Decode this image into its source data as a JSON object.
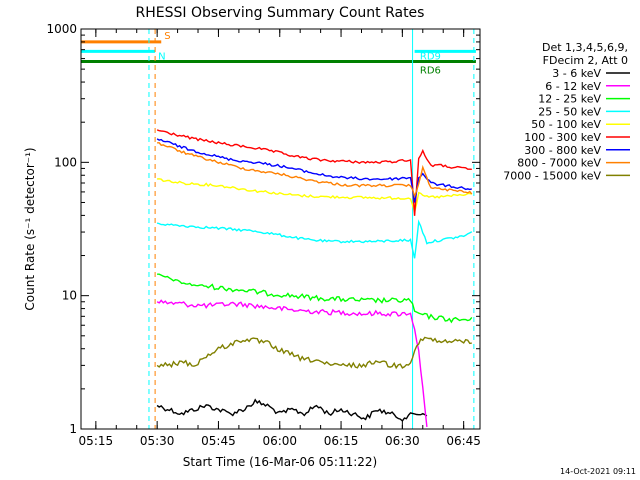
{
  "chart_data": {
    "type": "line",
    "title": "RHESSI Observing Summary Count Rates",
    "xlabel": "Start Time (16-Mar-06 05:11:22)",
    "ylabel": "Count Rate (s⁻¹ detector⁻¹)",
    "y_scale": "log",
    "ylim": [
      1,
      1000
    ],
    "xlim": [
      "05:11:22",
      "06:49:00"
    ],
    "y_ticks": [
      "1",
      "10",
      "100",
      "1000"
    ],
    "x_ticks": [
      "05:15",
      "05:30",
      "05:45",
      "06:00",
      "06:15",
      "06:30",
      "06:45"
    ],
    "legend_header": [
      "Det 1,3,4,5,6,9,",
      "FDecim 2, Att 0"
    ],
    "legend_position": "right",
    "timestamp": "14-Oct-2021 09:11",
    "flags": [
      {
        "label": "S",
        "color": "#ff8000",
        "start": "05:11:22",
        "end": "05:31:00",
        "y": 800
      },
      {
        "label": "N",
        "color": "#00ffff",
        "start": "05:11:22",
        "end": "05:29:30",
        "y": 680
      },
      {
        "label": "RD6",
        "color": "#008000",
        "start": "05:11:22",
        "end": "06:48:00",
        "y": 570
      },
      {
        "label": "RD9",
        "color": "#00ffff",
        "start": "06:33:00",
        "end": "06:48:00",
        "y": 680
      }
    ],
    "markers": [
      {
        "time": "05:28:00",
        "color": "#00ffff",
        "style": "dashed"
      },
      {
        "time": "05:29:30",
        "color": "#ff8000",
        "style": "dashed"
      },
      {
        "time": "06:32:30",
        "color": "#00ffff",
        "style": "solid"
      },
      {
        "time": "06:47:30",
        "color": "#00ffff",
        "style": "dashed"
      }
    ],
    "series": [
      {
        "name": "3 - 6 keV",
        "color": "#000000",
        "x": [
          "05:30",
          "05:33",
          "05:36",
          "05:39",
          "05:42",
          "05:45",
          "05:48",
          "05:51",
          "05:54",
          "05:57",
          "06:00",
          "06:03",
          "06:06",
          "06:09",
          "06:12",
          "06:15",
          "06:18",
          "06:21",
          "06:24",
          "06:27",
          "06:30",
          "06:33",
          "06:36"
        ],
        "values": [
          1.5,
          1.4,
          1.3,
          1.4,
          1.5,
          1.4,
          1.3,
          1.4,
          1.6,
          1.5,
          1.3,
          1.4,
          1.3,
          1.5,
          1.3,
          1.4,
          1.3,
          1.2,
          1.4,
          1.3,
          1.2,
          1.3,
          1.3
        ]
      },
      {
        "name": "6 - 12 keV",
        "color": "#ff00ff",
        "x": [
          "05:30",
          "05:33",
          "05:36",
          "05:39",
          "05:42",
          "05:45",
          "05:48",
          "05:51",
          "05:54",
          "05:57",
          "06:00",
          "06:03",
          "06:06",
          "06:09",
          "06:12",
          "06:15",
          "06:18",
          "06:21",
          "06:24",
          "06:27",
          "06:30",
          "06:32",
          "06:34",
          "06:36"
        ],
        "values": [
          9.0,
          8.8,
          8.7,
          8.5,
          8.4,
          8.5,
          8.7,
          8.6,
          8.4,
          8.2,
          8.0,
          7.8,
          7.7,
          7.6,
          7.5,
          7.5,
          7.4,
          7.3,
          7.4,
          7.3,
          7.3,
          7.5,
          4.0,
          1.0
        ]
      },
      {
        "name": "12 - 25 keV",
        "color": "#00ff00",
        "x": [
          "05:30",
          "05:33",
          "05:36",
          "05:39",
          "05:42",
          "05:45",
          "05:48",
          "05:51",
          "05:54",
          "05:57",
          "06:00",
          "06:03",
          "06:06",
          "06:09",
          "06:12",
          "06:15",
          "06:18",
          "06:21",
          "06:24",
          "06:27",
          "06:30",
          "06:32",
          "06:33",
          "06:36",
          "06:39",
          "06:42",
          "06:45",
          "06:47"
        ],
        "values": [
          14.5,
          13.5,
          12.5,
          12.0,
          11.8,
          11.5,
          11.2,
          11.0,
          10.7,
          10.4,
          10.2,
          10.0,
          9.8,
          9.6,
          9.5,
          9.4,
          9.3,
          9.2,
          9.2,
          9.2,
          9.2,
          9.3,
          7.5,
          7.0,
          6.8,
          6.6,
          6.6,
          6.6
        ]
      },
      {
        "name": "25 - 50 keV",
        "color": "#00ffff",
        "x": [
          "05:30",
          "05:33",
          "05:36",
          "05:39",
          "05:42",
          "05:45",
          "05:48",
          "05:51",
          "05:54",
          "05:57",
          "06:00",
          "06:03",
          "06:06",
          "06:09",
          "06:12",
          "06:15",
          "06:18",
          "06:21",
          "06:24",
          "06:27",
          "06:30",
          "06:32",
          "06:33",
          "06:34",
          "06:36",
          "06:39",
          "06:42",
          "06:45",
          "06:47"
        ],
        "values": [
          35.0,
          34.0,
          33.5,
          33.0,
          32.5,
          32.0,
          31.5,
          31.0,
          30.5,
          29.5,
          28.5,
          27.5,
          26.5,
          26.0,
          25.5,
          25.5,
          25.5,
          25.5,
          25.5,
          25.8,
          26.0,
          26.0,
          19.0,
          36.0,
          25.0,
          26.0,
          27.0,
          28.0,
          30.0
        ]
      },
      {
        "name": "50 - 100 keV",
        "color": "#ffff00",
        "x": [
          "05:30",
          "05:33",
          "05:36",
          "05:39",
          "05:42",
          "05:45",
          "05:48",
          "05:51",
          "05:54",
          "05:57",
          "06:00",
          "06:03",
          "06:06",
          "06:09",
          "06:12",
          "06:15",
          "06:18",
          "06:21",
          "06:24",
          "06:27",
          "06:30",
          "06:32",
          "06:33",
          "06:34",
          "06:36",
          "06:39",
          "06:42",
          "06:45",
          "06:47"
        ],
        "values": [
          75.0,
          72.0,
          70.0,
          69.0,
          68.0,
          67.0,
          65.0,
          63.0,
          61.0,
          60.0,
          58.0,
          57.0,
          56.0,
          55.5,
          55.0,
          55.0,
          54.5,
          54.5,
          54.0,
          54.0,
          54.0,
          54.0,
          43.0,
          58.0,
          55.0,
          55.0,
          56.0,
          57.0,
          58.0
        ]
      },
      {
        "name": "100 - 300 keV",
        "color": "#ff0000",
        "x": [
          "05:30",
          "05:33",
          "05:36",
          "05:39",
          "05:42",
          "05:45",
          "05:48",
          "05:51",
          "05:54",
          "05:57",
          "06:00",
          "06:03",
          "06:06",
          "06:09",
          "06:12",
          "06:15",
          "06:18",
          "06:21",
          "06:24",
          "06:27",
          "06:30",
          "06:32",
          "06:33",
          "06:34",
          "06:35",
          "06:37",
          "06:39",
          "06:42",
          "06:45",
          "06:47"
        ],
        "values": [
          175.0,
          165.0,
          158.0,
          150.0,
          145.0,
          140.0,
          135.0,
          132.0,
          128.0,
          123.0,
          118.0,
          112.0,
          108.0,
          105.0,
          103.0,
          102.0,
          101.0,
          100.0,
          100.0,
          101.0,
          103.0,
          105.0,
          40.0,
          108.0,
          120.0,
          95.0,
          95.0,
          92.0,
          90.0,
          88.0
        ]
      },
      {
        "name": "300 - 800 keV",
        "color": "#0000ff",
        "x": [
          "05:30",
          "05:33",
          "05:36",
          "05:39",
          "05:42",
          "05:45",
          "05:48",
          "05:51",
          "05:54",
          "05:57",
          "06:00",
          "06:03",
          "06:06",
          "06:09",
          "06:12",
          "06:15",
          "06:18",
          "06:21",
          "06:24",
          "06:27",
          "06:30",
          "06:32",
          "06:33",
          "06:34",
          "06:35",
          "06:37",
          "06:39",
          "06:42",
          "06:45",
          "06:47"
        ],
        "values": [
          150.0,
          140.0,
          130.0,
          122.0,
          116.0,
          110.0,
          105.0,
          102.0,
          100.0,
          97.0,
          94.0,
          90.0,
          86.0,
          82.0,
          79.0,
          77.0,
          76.0,
          75.0,
          75.0,
          75.0,
          76.0,
          77.0,
          50.0,
          77.0,
          82.0,
          70.0,
          68.0,
          66.0,
          64.0,
          63.0
        ]
      },
      {
        "name": "800 - 7000 keV",
        "color": "#ff8000",
        "x": [
          "05:30",
          "05:33",
          "05:36",
          "05:39",
          "05:42",
          "05:45",
          "05:48",
          "05:51",
          "05:54",
          "05:57",
          "06:00",
          "06:03",
          "06:06",
          "06:09",
          "06:12",
          "06:15",
          "06:18",
          "06:21",
          "06:24",
          "06:27",
          "06:30",
          "06:32",
          "06:33",
          "06:34",
          "06:35",
          "06:37",
          "06:39",
          "06:42",
          "06:45",
          "06:47"
        ],
        "values": [
          140.0,
          130.0,
          120.0,
          112.0,
          106.0,
          100.0,
          95.0,
          90.0,
          87.0,
          84.0,
          82.0,
          78.0,
          75.0,
          72.0,
          70.0,
          68.0,
          67.0,
          67.0,
          67.0,
          67.0,
          67.0,
          67.0,
          56.0,
          70.0,
          90.0,
          65.0,
          63.0,
          62.0,
          60.0,
          59.0
        ]
      },
      {
        "name": "7000 - 15000 keV",
        "color": "#808000",
        "x": [
          "05:30",
          "05:33",
          "05:36",
          "05:39",
          "05:42",
          "05:45",
          "05:48",
          "05:51",
          "05:54",
          "05:57",
          "06:00",
          "06:03",
          "06:06",
          "06:09",
          "06:12",
          "06:15",
          "06:18",
          "06:21",
          "06:24",
          "06:27",
          "06:30",
          "06:32",
          "06:34",
          "06:36",
          "06:39",
          "06:42",
          "06:45",
          "06:47"
        ],
        "values": [
          3.0,
          3.0,
          3.2,
          3.0,
          3.5,
          4.0,
          4.3,
          4.7,
          4.6,
          4.4,
          3.9,
          3.6,
          3.3,
          3.3,
          3.0,
          3.0,
          3.0,
          3.0,
          3.3,
          3.0,
          3.0,
          3.2,
          4.5,
          4.8,
          4.5,
          4.5,
          4.6,
          4.4
        ]
      }
    ]
  }
}
